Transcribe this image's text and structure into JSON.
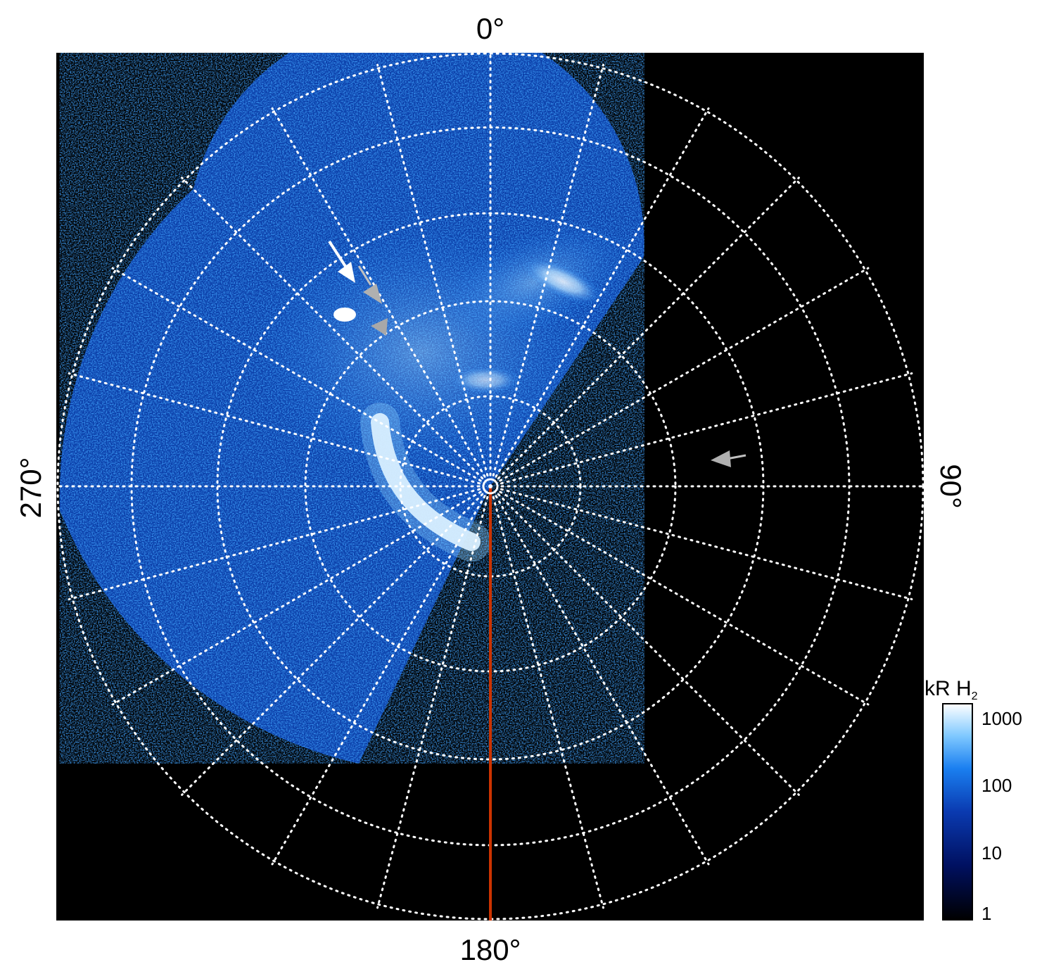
{
  "figure": {
    "labels": {
      "top": "0°",
      "bottom": "180°",
      "left": "270°",
      "right": "90°"
    },
    "colorbar": {
      "title_main": "kR H",
      "title_sub": "2",
      "ticks": [
        "1000",
        "100",
        "10",
        "1"
      ],
      "colors": [
        "#000000",
        "#001060",
        "#0a3ab0",
        "#1a7ff0",
        "#7ec8ff",
        "#ffffff"
      ]
    },
    "colors": {
      "background": "#000000",
      "grid": "#ffffff",
      "meridian_line": "#cc3300",
      "arrow_white": "#ffffff",
      "arrow_gray": "#b0b0b0"
    }
  }
}
